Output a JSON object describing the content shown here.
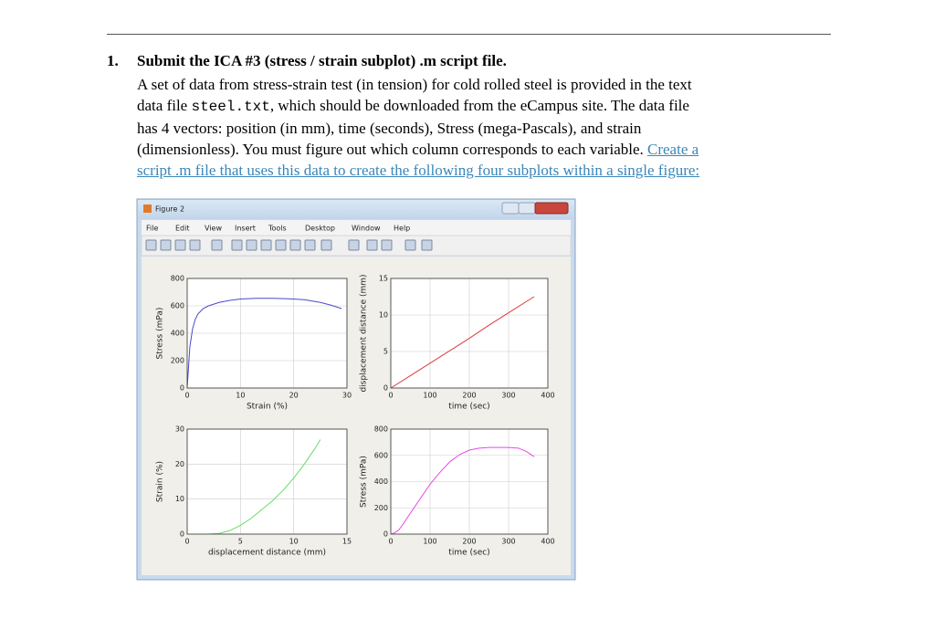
{
  "document": {
    "number": "1.",
    "heading": "Submit the ICA #3 (stress / strain subplot) .m script file.",
    "lines": [
      [
        {
          "text": "A set of data from stress-strain test (in tension) for cold rolled steel is provided in the text"
        }
      ],
      [
        {
          "text": "data file "
        },
        {
          "text": "steel.txt",
          "style": "mono"
        },
        {
          "text": ", which should be downloaded from the eCampus site. The data file"
        }
      ],
      [
        {
          "text": "has 4 vectors: position (in mm), time (seconds), Stress (mega-Pascals), and strain"
        }
      ],
      [
        {
          "text": "(dimensionless). You must figure out which column corresponds to each variable. "
        },
        {
          "text": "Create a",
          "style": "link"
        }
      ],
      [
        {
          "text": "script .m file that uses this data to create the following four subplots within a single figure:",
          "style": "link"
        }
      ]
    ]
  },
  "window": {
    "title": "Figure 2",
    "menu": [
      "File",
      "Edit",
      "View",
      "Insert",
      "Tools",
      "Desktop",
      "Window",
      "Help"
    ]
  },
  "chart_data": [
    {
      "type": "line",
      "xlabel": "Strain (%)",
      "ylabel": "Stress (mPa)",
      "color": "#4a4acc",
      "x": [
        0,
        0.5,
        1,
        1.5,
        2,
        3,
        4,
        6,
        8,
        10,
        13,
        16,
        19,
        22,
        25,
        27,
        29
      ],
      "values": [
        0,
        300,
        430,
        500,
        540,
        580,
        600,
        625,
        640,
        650,
        655,
        655,
        652,
        645,
        625,
        605,
        580
      ],
      "xlim": [
        0,
        30
      ],
      "xticks": [
        0,
        10,
        20,
        30
      ],
      "ylim": [
        0,
        800
      ],
      "yticks": [
        0,
        200,
        400,
        600,
        800
      ],
      "grid": true
    },
    {
      "type": "line",
      "xlabel": "time (sec)",
      "ylabel": "displacement distance (mm)",
      "color": "#dd3b3b",
      "x": [
        0,
        50,
        100,
        150,
        200,
        250,
        300,
        350,
        365
      ],
      "values": [
        0,
        1.7,
        3.4,
        5.1,
        6.8,
        8.6,
        10.3,
        12,
        12.5
      ],
      "xlim": [
        0,
        400
      ],
      "xticks": [
        0,
        100,
        200,
        300,
        400
      ],
      "ylim": [
        0,
        15
      ],
      "yticks": [
        0,
        5,
        10,
        15
      ],
      "grid": true
    },
    {
      "type": "line",
      "xlabel": "displacement distance (mm)",
      "ylabel": "Strain (%)",
      "color": "#66dd66",
      "x": [
        0,
        1,
        2,
        3,
        4,
        5,
        6,
        7,
        8,
        9,
        10,
        11,
        12,
        12.5
      ],
      "values": [
        0,
        0,
        0,
        0.2,
        1,
        2.5,
        4.5,
        7,
        9.5,
        12.5,
        16,
        20,
        24.5,
        27
      ],
      "xlim": [
        0,
        15
      ],
      "xticks": [
        0,
        5,
        10,
        15
      ],
      "ylim": [
        0,
        30
      ],
      "yticks": [
        0,
        10,
        20,
        30
      ],
      "grid": true
    },
    {
      "type": "line",
      "xlabel": "time (sec)",
      "ylabel": "Stress (mPa)",
      "color": "#e848e8",
      "x": [
        0,
        10,
        20,
        30,
        50,
        75,
        100,
        125,
        150,
        175,
        200,
        225,
        250,
        275,
        300,
        325,
        345,
        365
      ],
      "values": [
        0,
        10,
        30,
        70,
        160,
        270,
        380,
        470,
        550,
        605,
        640,
        655,
        660,
        660,
        660,
        655,
        630,
        590
      ],
      "xlim": [
        0,
        400
      ],
      "xticks": [
        0,
        100,
        200,
        300,
        400
      ],
      "ylim": [
        0,
        800
      ],
      "yticks": [
        0,
        200,
        400,
        600,
        800
      ],
      "grid": true
    }
  ]
}
